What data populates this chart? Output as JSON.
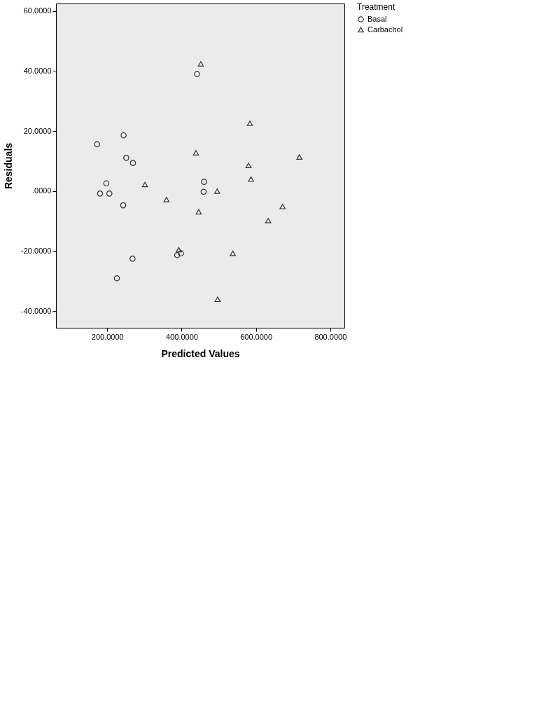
{
  "chart_data": {
    "type": "scatter",
    "xlabel": "Predicted Values",
    "ylabel": "Residuals",
    "legend_title": "Treatment",
    "legend": "top right",
    "grid": false,
    "xlim": [
      62,
      838
    ],
    "ylim": [
      -45.5,
      62.5
    ],
    "xticks": [
      {
        "value": 200,
        "label": "200.0000"
      },
      {
        "value": 400,
        "label": "400.0000"
      },
      {
        "value": 600,
        "label": "600.0000"
      },
      {
        "value": 800,
        "label": "800.0000"
      }
    ],
    "yticks": [
      {
        "value": -40,
        "label": "-40.0000"
      },
      {
        "value": -20,
        "label": "-20.0000"
      },
      {
        "value": 0,
        "label": ".0000"
      },
      {
        "value": 20,
        "label": "20.0000"
      },
      {
        "value": 40,
        "label": "40.0000"
      },
      {
        "value": 60,
        "label": "60.0000"
      }
    ],
    "series": [
      {
        "name": "Basal",
        "color": "#333333",
        "marker": "circle",
        "x": [
          441.5,
          244,
          172.5,
          251,
          269,
          197.5,
          460.4,
          180.6,
          205.7,
          459.2,
          242.8,
          388,
          398,
          267.9,
          225.8
        ],
        "values": [
          39.0,
          18.6,
          15.6,
          11.1,
          9.4,
          2.6,
          3.1,
          -0.8,
          -0.8,
          -0.2,
          -4.7,
          -21.3,
          -20.7,
          -22.5,
          -29.0
        ]
      },
      {
        "name": "Carbachol",
        "color": "#333333",
        "marker": "triangle",
        "x": [
          451.7,
          583.8,
          438.5,
          717,
          580,
          586.8,
          301.3,
          495.7,
          359.2,
          446,
          671.7,
          632.8,
          392.5,
          537.7,
          497
        ],
        "values": [
          42.4,
          22.6,
          12.8,
          11.4,
          8.6,
          4.0,
          2.2,
          0.0,
          -2.8,
          -6.9,
          -5.1,
          -9.8,
          -19.5,
          -20.7,
          -36.0
        ]
      }
    ]
  }
}
